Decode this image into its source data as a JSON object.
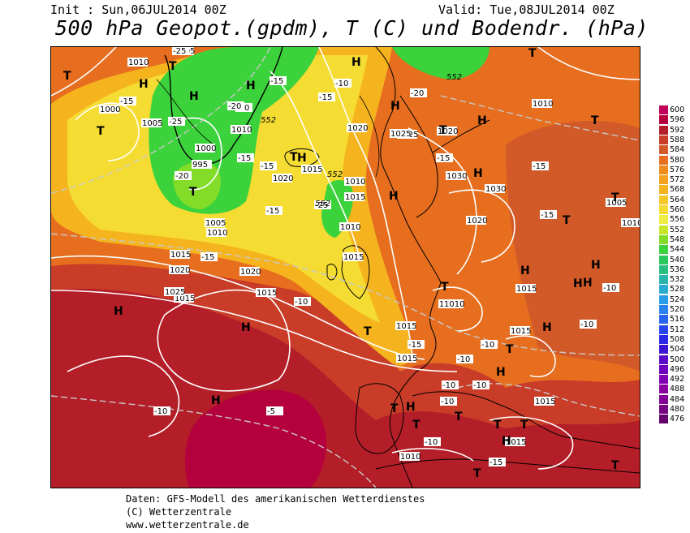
{
  "header": {
    "init": "Init : Sun,06JUL2014 00Z",
    "valid": "Valid: Tue,08JUL2014 00Z",
    "title": "500 hPa Geopot.(gpdm), T (C) und Bodendr. (hPa)"
  },
  "footer": {
    "line1": "Daten: GFS-Modell des amerikanischen Wetterdienstes",
    "line2": "(C) Wetterzentrale",
    "line3": "www.wetterzentrale.de"
  },
  "legend": {
    "levels": [
      "600",
      "596",
      "592",
      "588",
      "584",
      "580",
      "576",
      "572",
      "568",
      "564",
      "560",
      "556",
      "552",
      "548",
      "544",
      "540",
      "536",
      "532",
      "528",
      "524",
      "520",
      "516",
      "512",
      "508",
      "504",
      "500",
      "496",
      "492",
      "488",
      "484",
      "480",
      "476"
    ],
    "colors": [
      "#c0005a",
      "#b4003c",
      "#b41e28",
      "#c83c28",
      "#d25a28",
      "#e66e1e",
      "#f08c1e",
      "#f5a01e",
      "#f5b41e",
      "#f5c828",
      "#f5dc32",
      "#f0ec46",
      "#c8e628",
      "#82dc28",
      "#3cd23c",
      "#28c85a",
      "#28be82",
      "#28b4aa",
      "#28aad2",
      "#289ce6",
      "#2882f0",
      "#2864f0",
      "#2846f0",
      "#2828e6",
      "#3c14d2",
      "#5a0ac8",
      "#6e00be",
      "#8200b4",
      "#8c00a0",
      "#820096",
      "#780082",
      "#64006e"
    ]
  },
  "map": {
    "pressure_labels": [
      "1005",
      "1010",
      "1000",
      "1005",
      "995",
      "1000",
      "1010",
      "1005",
      "1010",
      "1015",
      "1015",
      "1020",
      "1020",
      "1025",
      "1020",
      "1015",
      "1010",
      "1015",
      "1010",
      "1015",
      "1020",
      "1025",
      "1030",
      "1010",
      "1030",
      "1015",
      "1025",
      "1020",
      "1015",
      "1010",
      "1015",
      "1015",
      "1015",
      "1010",
      "1015",
      "1005",
      "1020",
      "1010",
      "1015",
      "1010"
    ],
    "temp_labels": [
      "-25",
      "-15",
      "-15",
      "-20",
      "-20",
      "-25",
      "-15",
      "-15",
      "-20",
      "-25",
      "-15",
      "-10",
      "-15",
      "-20",
      "-15",
      "-10",
      "-15",
      "-15",
      "-10",
      "-10",
      "-10",
      "-10",
      "-5",
      "-10",
      "-15",
      "-10",
      "-15",
      "-10",
      "-15",
      "-10",
      "-10"
    ],
    "geo_labels": [
      "552",
      "552",
      "552",
      "552"
    ],
    "high_symbol": "H",
    "low_symbol": "T"
  }
}
